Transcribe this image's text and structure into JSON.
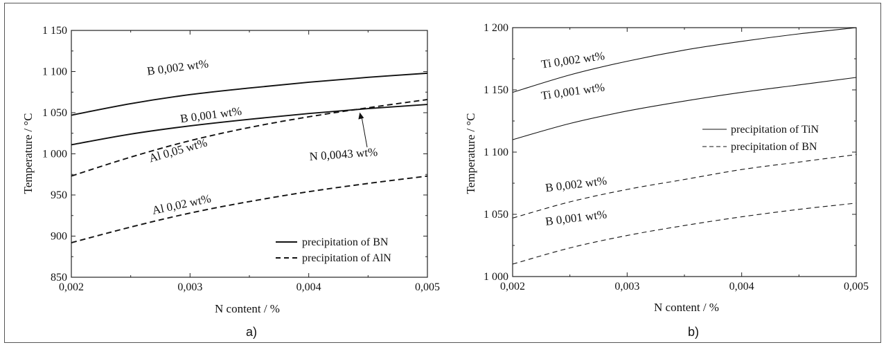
{
  "chart_data": [
    {
      "type": "line",
      "caption": "a)",
      "xlabel": "N content / %",
      "ylabel": "Temperature / °C",
      "xlim": [
        0.002,
        0.005
      ],
      "ylim": [
        850,
        1150
      ],
      "xticks": [
        0.002,
        0.003,
        0.004,
        0.005
      ],
      "xtick_labels": [
        "0,002",
        "0,003",
        "0,004",
        "0,005"
      ],
      "yticks": [
        850,
        900,
        950,
        1000,
        1050,
        1100,
        1150
      ],
      "ytick_labels": [
        "850",
        "900",
        "950",
        "1 000",
        "1 050",
        "1 100",
        "1 150"
      ],
      "legend": {
        "placement": "bottom-right",
        "entries": [
          {
            "label": "precipitation of BN",
            "style": "solid"
          },
          {
            "label": "precipitation of AlN",
            "style": "dashed"
          }
        ]
      },
      "series": [
        {
          "name": "B 0,002 wt%",
          "group": "BN",
          "style": "solid",
          "x": [
            0.002,
            0.0025,
            0.003,
            0.0035,
            0.004,
            0.0045,
            0.005
          ],
          "y": [
            1047,
            1061,
            1072,
            1080,
            1087,
            1093,
            1098
          ]
        },
        {
          "name": "B 0,001 wt%",
          "group": "BN",
          "style": "solid",
          "x": [
            0.002,
            0.0025,
            0.003,
            0.0035,
            0.004,
            0.0045,
            0.005
          ],
          "y": [
            1011,
            1024,
            1034,
            1042,
            1049,
            1055,
            1060
          ]
        },
        {
          "name": "Al 0,05 wt%",
          "group": "AlN",
          "style": "dashed",
          "x": [
            0.002,
            0.0025,
            0.003,
            0.0035,
            0.004,
            0.0045,
            0.005
          ],
          "y": [
            973,
            996,
            1016,
            1032,
            1045,
            1056,
            1066
          ]
        },
        {
          "name": "Al 0,02 wt%",
          "group": "AlN",
          "style": "dashed",
          "x": [
            0.002,
            0.0025,
            0.003,
            0.0035,
            0.004,
            0.0045,
            0.005
          ],
          "y": [
            892,
            911,
            928,
            942,
            954,
            964,
            973
          ]
        }
      ],
      "annotations": [
        {
          "text": "N 0,0043 wt%",
          "x": 0.00443,
          "y": 1001,
          "arrow_to": [
            0.00443,
            1052
          ]
        }
      ]
    },
    {
      "type": "line",
      "caption": "b)",
      "xlabel": "N content / %",
      "ylabel": "Temperature / °C",
      "xlim": [
        0.002,
        0.005
      ],
      "ylim": [
        1000,
        1200
      ],
      "xticks": [
        0.002,
        0.003,
        0.004,
        0.005
      ],
      "xtick_labels": [
        "0,002",
        "0,003",
        "0,004",
        "0,005"
      ],
      "yticks": [
        1000,
        1050,
        1100,
        1150,
        1200
      ],
      "ytick_labels": [
        "1 000",
        "1 050",
        "1 100",
        "1 150",
        "1 200"
      ],
      "legend": {
        "placement": "center-right",
        "entries": [
          {
            "label": "precipitation of TiN",
            "style": "solid"
          },
          {
            "label": "precipitation of BN",
            "style": "dashed"
          }
        ]
      },
      "series": [
        {
          "name": "Ti 0,002 wt%",
          "group": "TiN",
          "style": "solid",
          "x": [
            0.002,
            0.0025,
            0.003,
            0.0035,
            0.004,
            0.0045,
            0.005
          ],
          "y": [
            1148,
            1162,
            1173,
            1182,
            1189,
            1195,
            1200
          ]
        },
        {
          "name": "Ti 0,001 wt%",
          "group": "TiN",
          "style": "solid",
          "x": [
            0.002,
            0.0025,
            0.003,
            0.0035,
            0.004,
            0.0045,
            0.005
          ],
          "y": [
            1110,
            1123,
            1133,
            1141,
            1148,
            1154,
            1160
          ]
        },
        {
          "name": "B 0,002 wt%",
          "group": "BN",
          "style": "dashed",
          "x": [
            0.002,
            0.0025,
            0.003,
            0.0035,
            0.004,
            0.0045,
            0.005
          ],
          "y": [
            1047,
            1060,
            1070,
            1078,
            1086,
            1092,
            1098
          ]
        },
        {
          "name": "B 0,001 wt%",
          "group": "BN",
          "style": "dashed",
          "x": [
            0.002,
            0.0025,
            0.003,
            0.0035,
            0.004,
            0.0045,
            0.005
          ],
          "y": [
            1010,
            1023,
            1033,
            1041,
            1048,
            1054,
            1059
          ]
        }
      ],
      "annotations": []
    }
  ]
}
